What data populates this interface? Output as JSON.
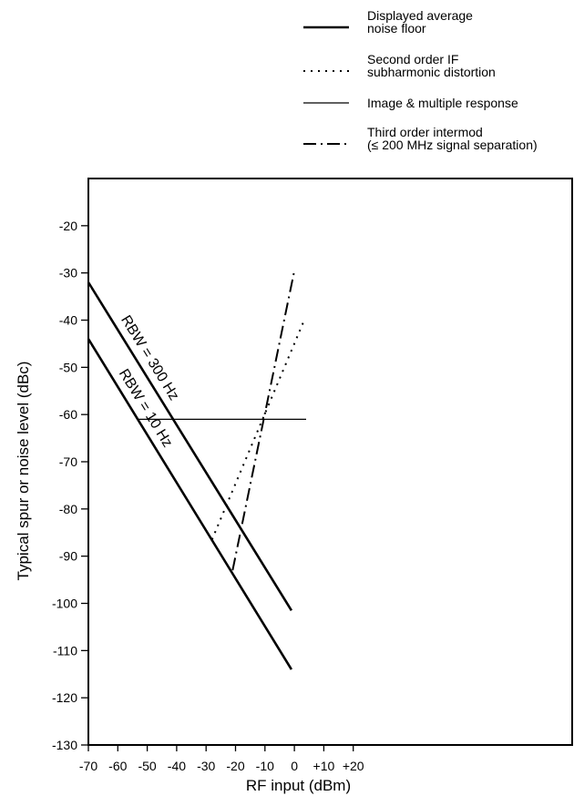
{
  "chart_data": {
    "type": "line",
    "xlabel": "RF input (dBm)",
    "ylabel": "Typical spur or noise level (dBc)",
    "xlim": [
      -70,
      30
    ],
    "ylim": [
      -130,
      -10
    ],
    "x_ticks": [
      {
        "value": -70,
        "label": "-70"
      },
      {
        "value": -60,
        "label": "-60"
      },
      {
        "value": -50,
        "label": "-50"
      },
      {
        "value": -40,
        "label": "-40"
      },
      {
        "value": -30,
        "label": "-30"
      },
      {
        "value": -20,
        "label": "-20"
      },
      {
        "value": -10,
        "label": "-10"
      },
      {
        "value": 0,
        "label": "0"
      },
      {
        "value": 10,
        "label": "+10"
      },
      {
        "value": 20,
        "label": "+20"
      }
    ],
    "y_ticks": [
      {
        "value": -20,
        "label": "-20"
      },
      {
        "value": -30,
        "label": "-30"
      },
      {
        "value": -40,
        "label": "-40"
      },
      {
        "value": -50,
        "label": "-50"
      },
      {
        "value": -60,
        "label": "-60"
      },
      {
        "value": -70,
        "label": "-70"
      },
      {
        "value": -80,
        "label": "-80"
      },
      {
        "value": -90,
        "label": "-90"
      },
      {
        "value": -100,
        "label": "-100"
      },
      {
        "value": -110,
        "label": "-110"
      },
      {
        "value": -120,
        "label": "-120"
      },
      {
        "value": -130,
        "label": "-130"
      }
    ],
    "grid": false,
    "legend_position": "top-right",
    "legend": [
      {
        "lines": [
          "Displayed average",
          "noise floor"
        ],
        "style": "thick-solid"
      },
      {
        "lines": [
          "Second order IF",
          "subharmonic distortion"
        ],
        "style": "dotted"
      },
      {
        "lines": [
          "Image & multiple response"
        ],
        "style": "thin-solid"
      },
      {
        "lines": [
          "Third order intermod",
          "(≤ 200 MHz signal separation)"
        ],
        "style": "dash-dot"
      }
    ],
    "series": [
      {
        "key": "noise_300hz",
        "style": "thick-solid",
        "label": "RBW = 300 Hz",
        "x": [
          -70,
          -1
        ],
        "y": [
          -32,
          -101.5
        ]
      },
      {
        "key": "noise_10hz",
        "style": "thick-solid",
        "label": "RBW = 10 Hz",
        "x": [
          -70,
          -1
        ],
        "y": [
          -44,
          -114
        ]
      },
      {
        "key": "second_order",
        "style": "dotted",
        "x": [
          -28,
          3
        ],
        "y": [
          -86.5,
          -40.5
        ]
      },
      {
        "key": "image_multiple",
        "style": "thin-solid",
        "x": [
          -53,
          4
        ],
        "y": [
          -61,
          -61
        ]
      },
      {
        "key": "third_order",
        "style": "dash-dot",
        "x": [
          -21,
          0
        ],
        "y": [
          -93,
          -29.5
        ]
      }
    ]
  }
}
